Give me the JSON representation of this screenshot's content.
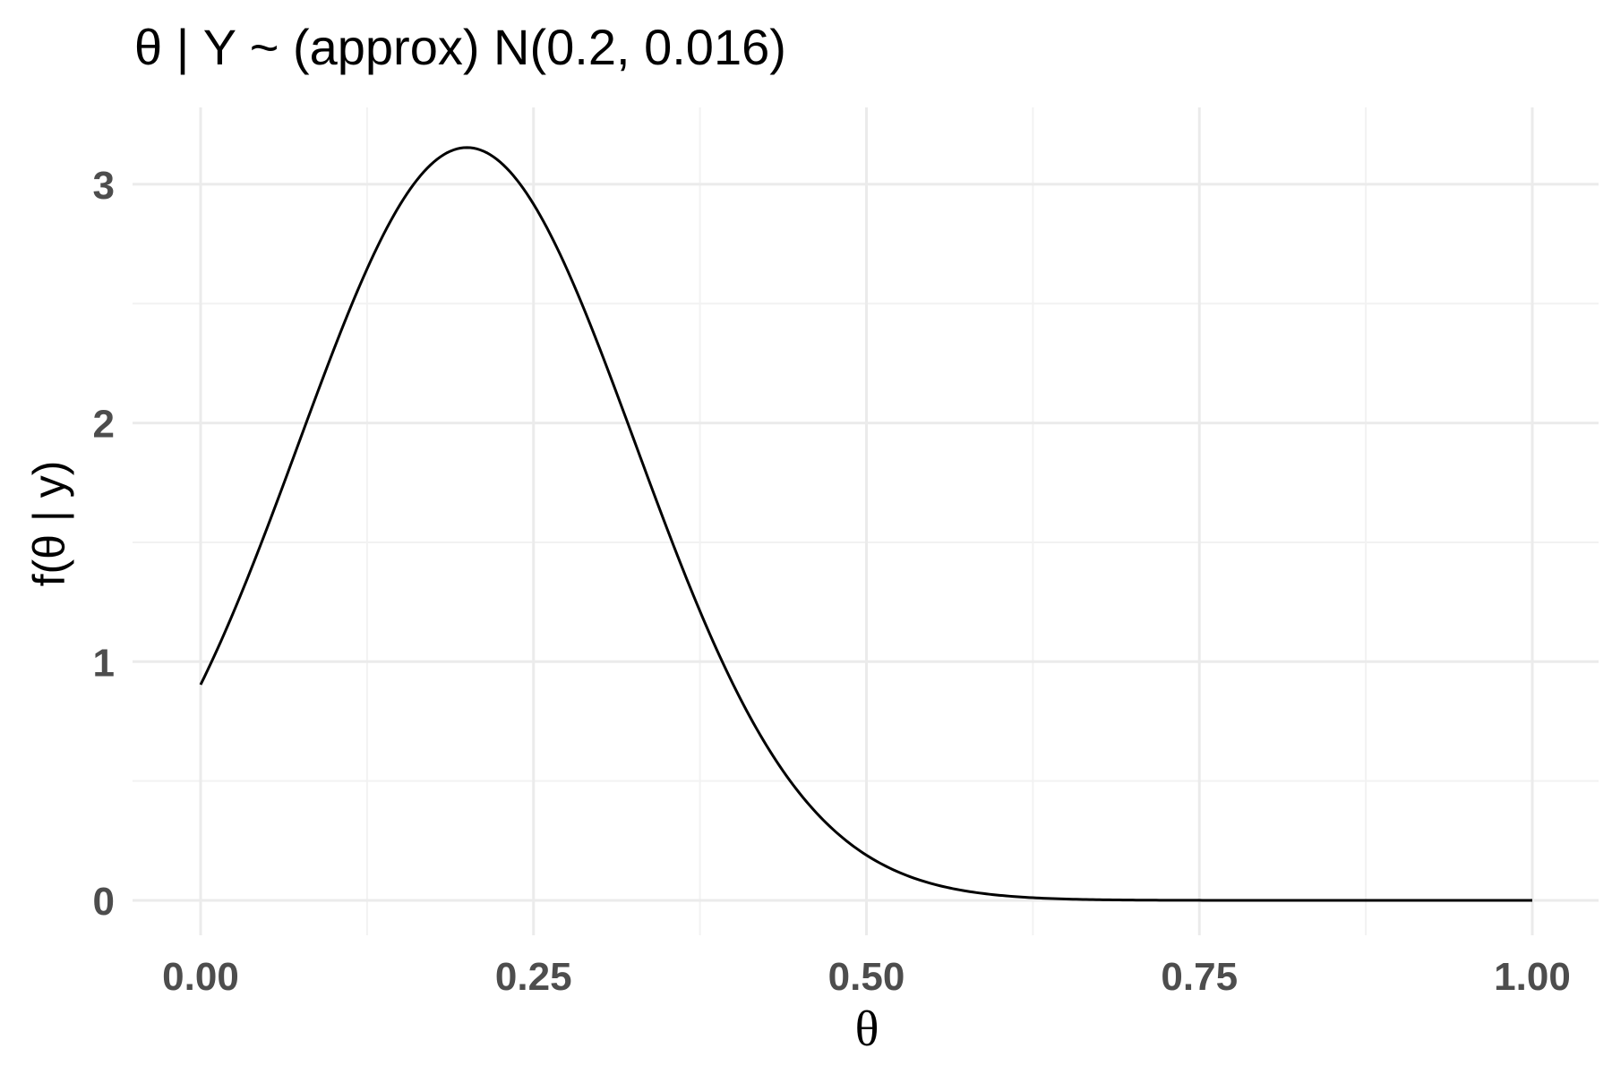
{
  "chart_data": {
    "type": "line",
    "title": "θ | Y ~ (approx) N(0.2, 0.016)",
    "xlabel": "θ",
    "ylabel": "f(θ | y)",
    "xlim": [
      0,
      1
    ],
    "ylim": [
      0,
      3.14
    ],
    "xticks": [
      0,
      0.25,
      0.5,
      0.75,
      1.0
    ],
    "xtick_labels": [
      "0.00",
      "0.25",
      "0.50",
      "0.75",
      "1.00"
    ],
    "yticks": [
      0,
      1,
      2,
      3
    ],
    "ytick_labels": [
      "0",
      "1",
      "2",
      "3"
    ],
    "grid": true,
    "legend": "none",
    "line_color": "#000000",
    "series": [
      {
        "distribution": "normal",
        "mean": 0.2,
        "variance": 0.016,
        "x": [
          0.0,
          0.05,
          0.1,
          0.15,
          0.2,
          0.25,
          0.3,
          0.35,
          0.4,
          0.45,
          0.5,
          0.55,
          0.6,
          0.65,
          0.7,
          0.75,
          0.8,
          0.85,
          0.9,
          0.95,
          1.0
        ],
        "y": [
          0.91,
          1.57,
          2.32,
          2.94,
          3.15,
          2.94,
          2.32,
          1.57,
          0.91,
          0.45,
          0.19,
          0.07,
          0.02,
          0.006,
          0.001,
          0.0002,
          0.0,
          0.0,
          0.0,
          0.0,
          0.0
        ]
      }
    ]
  }
}
